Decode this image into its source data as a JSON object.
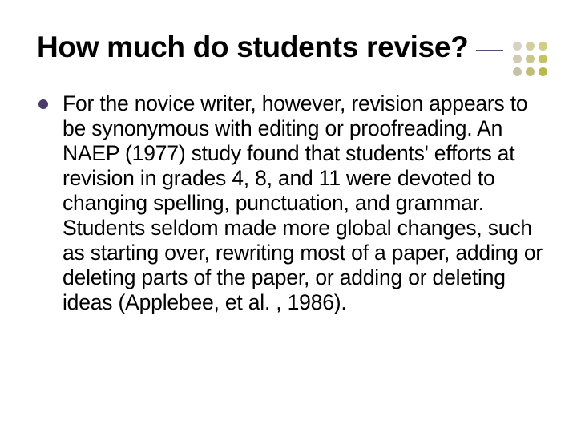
{
  "slide": {
    "title": "How much do students revise?",
    "title_color": "#000000",
    "title_fontsize": 37,
    "rule_color": "#5b4a78",
    "bullet_color": "#4b3b6b",
    "body_color": "#000000",
    "body_fontsize": 26.5,
    "background_color": "#ffffff",
    "body_text": "For the novice writer, however, revision appears to be synonymous with editing or proofreading. An NAEP (1977) study found that students' efforts at revision in grades 4, 8, and 11 were devoted to changing spelling, punctuation, and grammar. Students seldom made more global changes, such as starting over, rewriting most of a paper, adding or deleting parts of the paper, or adding or deleting ideas (Applebee, et al. , 1986).",
    "decor_dots": {
      "rows": 3,
      "cols": 3,
      "colors": [
        "#d8d2c2",
        "#d1cf9f",
        "#cfce83",
        "#cfcbb4",
        "#c9c78b",
        "#c3c363",
        "#c5c1a4",
        "#bfbf74",
        "#b7ba4a"
      ],
      "dot_size": 11,
      "cell": 14,
      "gap": 2
    }
  }
}
